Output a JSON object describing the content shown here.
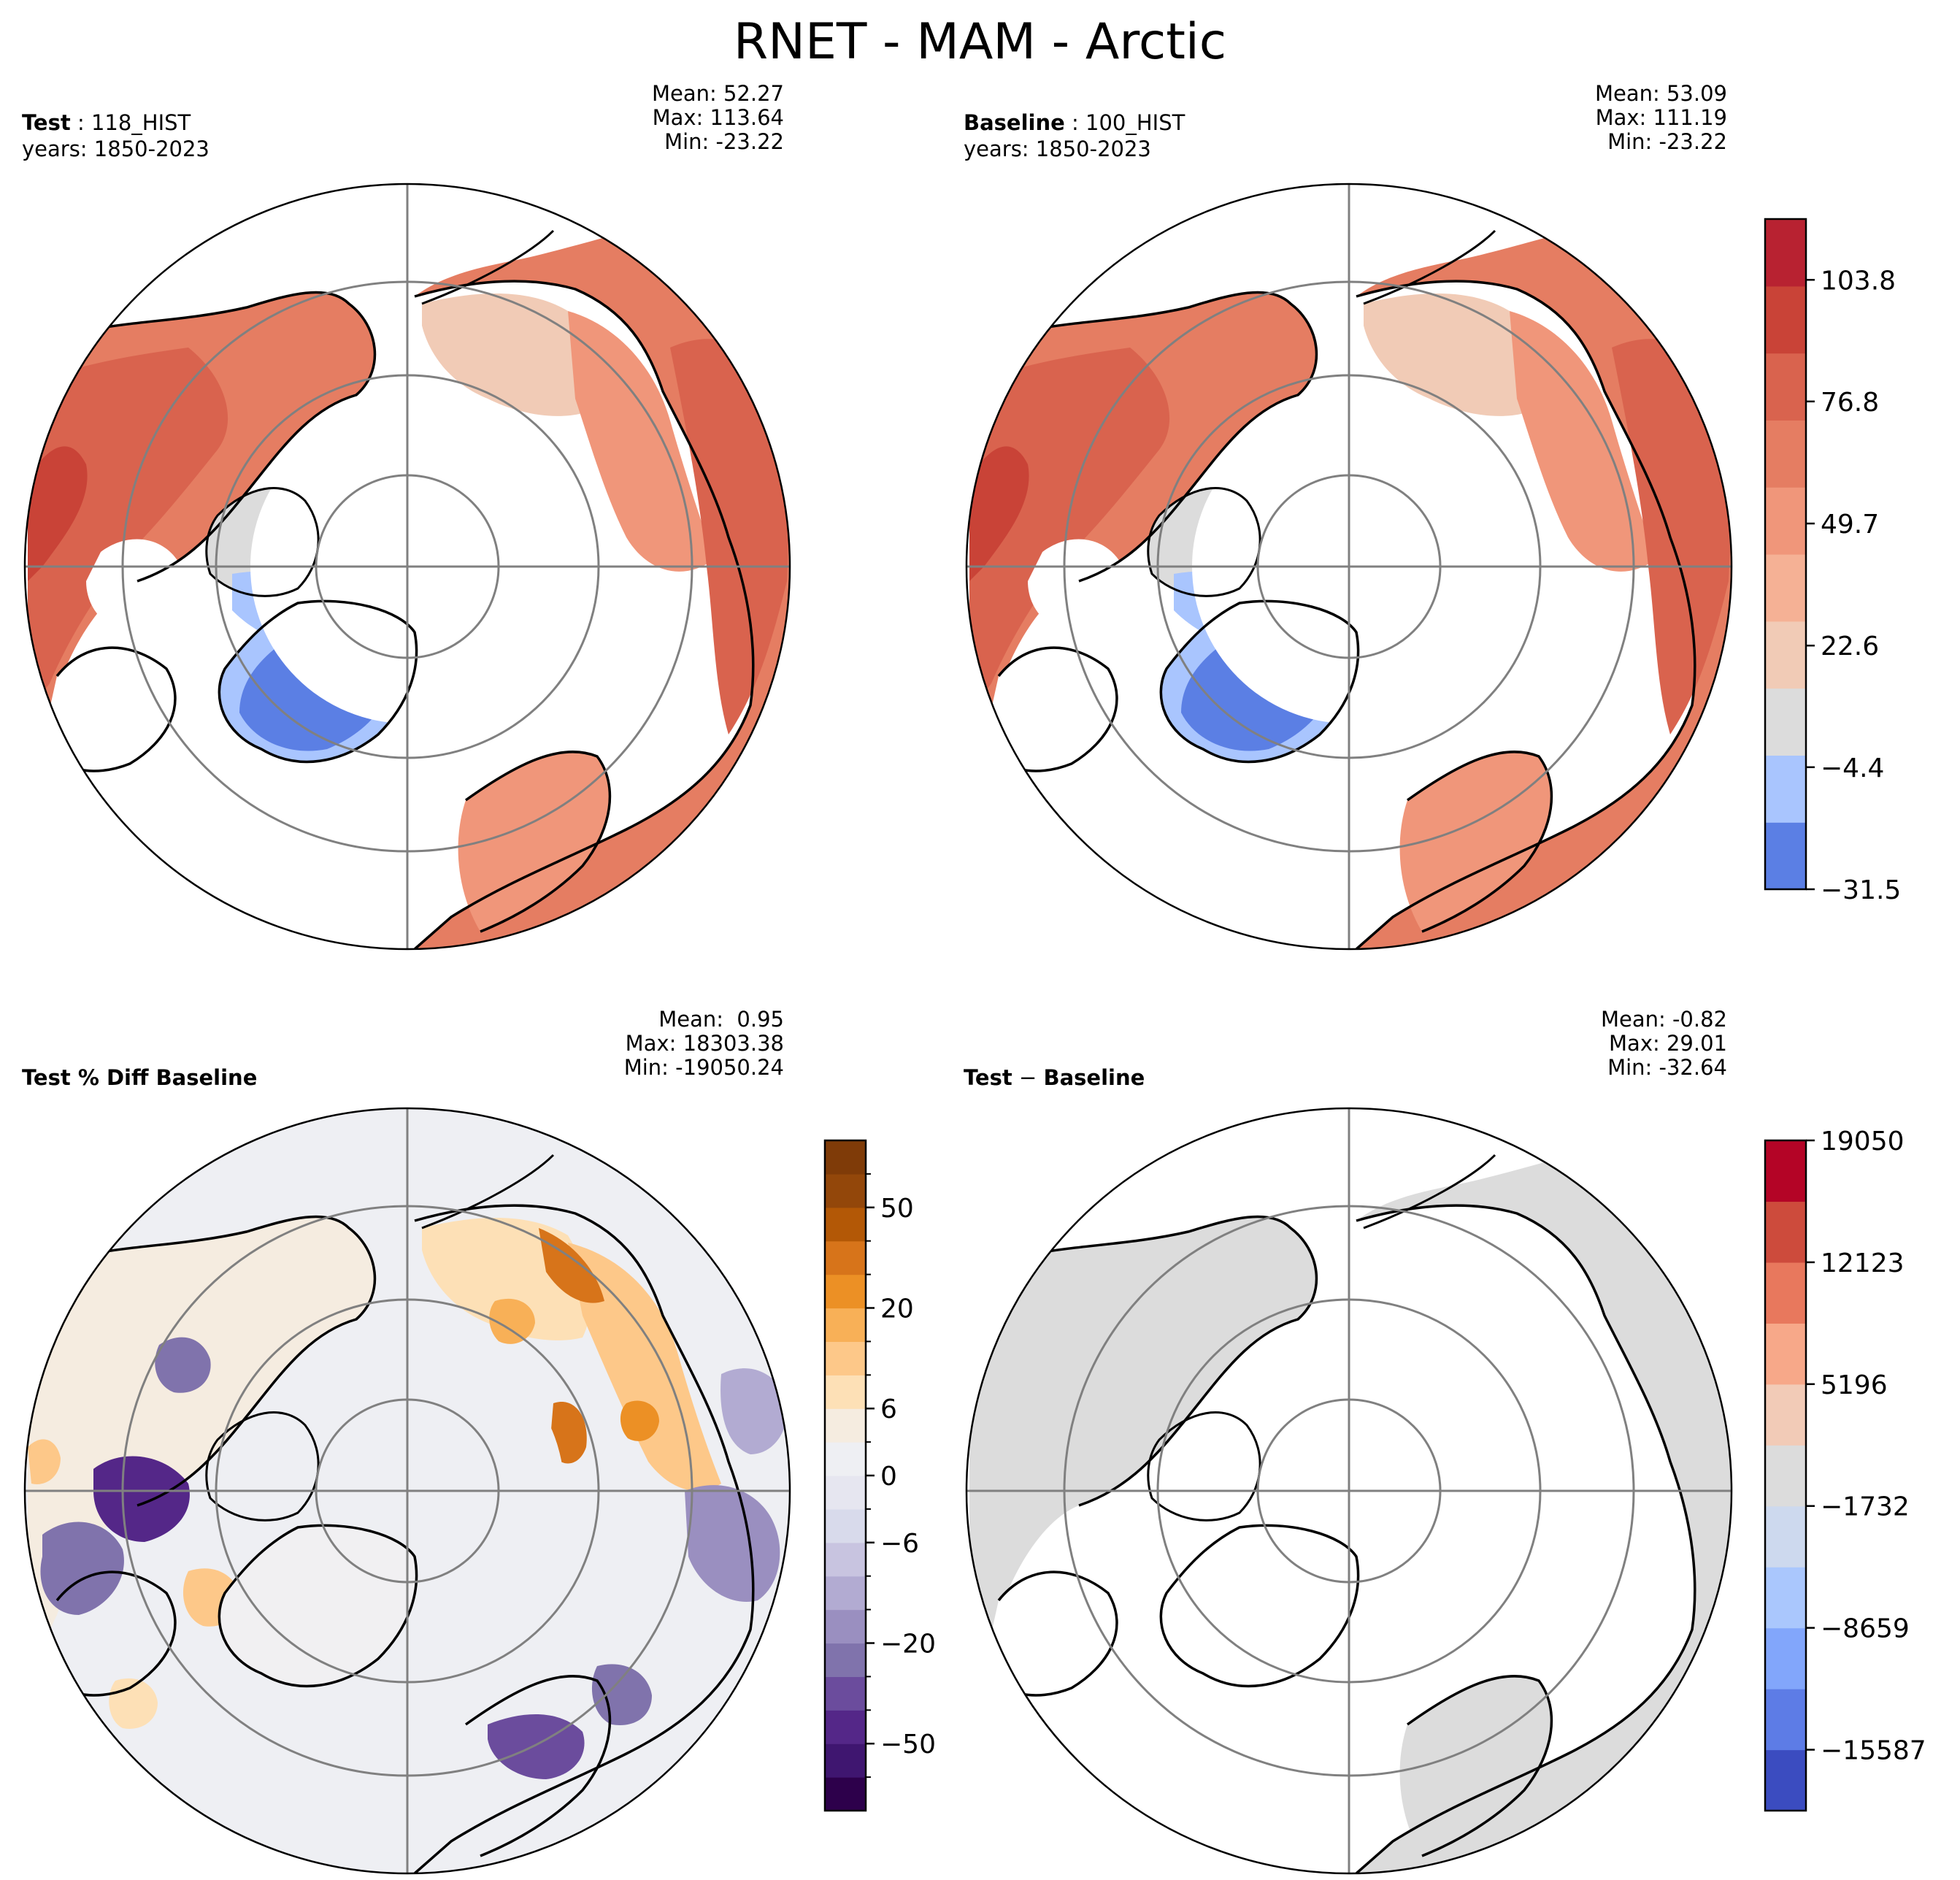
{
  "title": "RNET - MAM - Arctic",
  "panels": {
    "test": {
      "label_bold": "Test",
      "label_rest": " : 118_HIST",
      "years": "years: 1850-2023",
      "mean": "Mean: 52.27",
      "max": "Max: 113.64",
      "min": "Min: -23.22"
    },
    "baseline": {
      "label_bold": "Baseline",
      "label_rest": " : 100_HIST",
      "years": "years: 1850-2023",
      "mean": "Mean: 53.09",
      "max": "Max: 111.19",
      "min": "Min: -23.22"
    },
    "pctdiff": {
      "label": "Test % Diff Baseline",
      "mean": "Mean:  0.95",
      "max": "Max: 18303.38",
      "min": "Min: -19050.24"
    },
    "diff": {
      "label_bold": "Test",
      "label_mid": " − ",
      "label_bold2": "Baseline",
      "mean": "Mean: -0.82",
      "max": "Max: 29.01",
      "min": "Min: -32.64"
    }
  },
  "chart_data": [
    {
      "type": "heatmap",
      "name": "Test",
      "projection": "north-polar-stereographic",
      "colormap": "coolwarm",
      "colorbar_ticks": [
        "103.8",
        "76.8",
        "49.7",
        "22.6",
        "−4.4",
        "−31.5"
      ],
      "colorbar_tick_values": [
        103.8,
        76.8,
        49.7,
        22.6,
        -4.4,
        -31.5
      ],
      "colorbar_range": [
        -31.5,
        117.3
      ],
      "colors": [
        "#5b7fe4",
        "#a9c5fe",
        "#dcdcdc",
        "#f1cbb6",
        "#f5b195",
        "#f0967a",
        "#e57d62",
        "#d9634e",
        "#c94337",
        "#b82231"
      ]
    },
    {
      "type": "heatmap",
      "name": "Baseline",
      "projection": "north-polar-stereographic",
      "colormap": "coolwarm",
      "colorbar_ticks": [
        "103.8",
        "76.8",
        "49.7",
        "22.6",
        "−4.4",
        "−31.5"
      ],
      "colorbar_tick_values": [
        103.8,
        76.8,
        49.7,
        22.6,
        -4.4,
        -31.5
      ],
      "colorbar_range": [
        -31.5,
        117.3
      ]
    },
    {
      "type": "heatmap",
      "name": "Test % Diff Baseline",
      "projection": "north-polar-stereographic",
      "colormap": "PuOr_r",
      "colorbar_ticks": [
        "50",
        "20",
        "6",
        "0",
        "−6",
        "−20",
        "−50"
      ],
      "colorbar_tick_values": [
        50,
        20,
        6,
        0,
        -6,
        -20,
        -50
      ],
      "colors": [
        "#2d004b",
        "#3f1670",
        "#542788",
        "#6b4c9d",
        "#8073ac",
        "#9a8fc0",
        "#b2abd2",
        "#c8c4e0",
        "#d8daeb",
        "#e6e6f0",
        "#eeeff3",
        "#f5ece0",
        "#fde0b6",
        "#fdc889",
        "#f8b057",
        "#ec9025",
        "#d7741a",
        "#b35806",
        "#93470a",
        "#7f3b08"
      ]
    },
    {
      "type": "heatmap",
      "name": "Test − Baseline",
      "projection": "north-polar-stereographic",
      "colormap": "coolwarm",
      "colorbar_ticks": [
        "19050",
        "12123",
        "5196",
        "−1732",
        "−8659",
        "−15587"
      ],
      "colorbar_tick_values": [
        19050,
        12123,
        5196,
        -1732,
        -8659,
        -15587
      ],
      "colorbar_range": [
        -19050,
        19050
      ],
      "colors": [
        "#3b4cc0",
        "#5d7ce6",
        "#82a6fb",
        "#aac7fd",
        "#cdd9ee",
        "#dcdcdc",
        "#f2cbb7",
        "#f7a889",
        "#e8785d",
        "#cd4b3c",
        "#b40426"
      ]
    }
  ]
}
